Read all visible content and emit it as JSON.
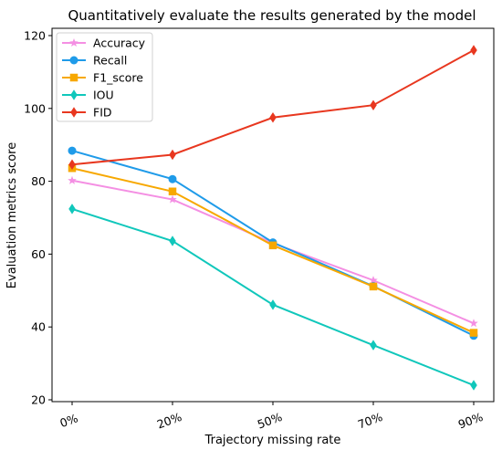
{
  "chart_data": {
    "type": "line",
    "title": "Quantitatively evaluate the results generated by the model",
    "xlabel": "Trajectory missing rate",
    "ylabel": "Evaluation metrics score",
    "categories": [
      "0%",
      "20%",
      "50%",
      "70%",
      "90%"
    ],
    "ylim": [
      19.5,
      122
    ],
    "yticks": [
      20,
      40,
      60,
      80,
      100,
      120
    ],
    "grid": false,
    "legend_position": "top-left",
    "series": [
      {
        "name": "Accuracy",
        "values": [
          80.2,
          75.0,
          63.0,
          52.8,
          41.0
        ],
        "color": "#f48fe3",
        "marker": "star"
      },
      {
        "name": "Recall",
        "values": [
          88.4,
          80.6,
          63.2,
          51.2,
          37.6
        ],
        "color": "#1f9be9",
        "marker": "circle"
      },
      {
        "name": "F1_score",
        "values": [
          83.6,
          77.2,
          62.4,
          51.1,
          38.4
        ],
        "color": "#f7a800",
        "marker": "square"
      },
      {
        "name": "IOU",
        "values": [
          72.4,
          63.6,
          46.1,
          35.0,
          24.0
        ],
        "color": "#10c7bb",
        "marker": "diamond"
      },
      {
        "name": "FID",
        "values": [
          84.6,
          87.3,
          97.5,
          100.9,
          116.0
        ],
        "color": "#e8371f",
        "marker": "diamond"
      }
    ]
  }
}
